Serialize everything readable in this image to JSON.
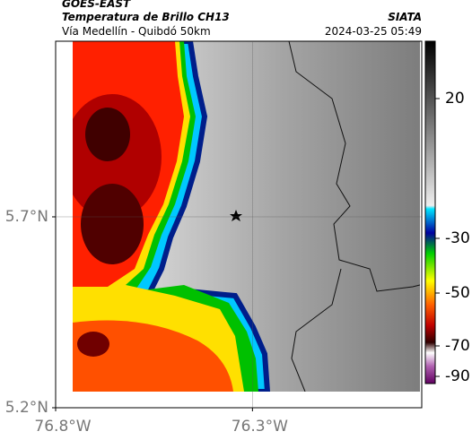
{
  "header": {
    "source": "GOES-EAST",
    "title": "Temperatura de Brillo CH13",
    "subtitle": "Vía Medellín - Quibdó 50km",
    "org": "SIATA",
    "datetime": "2024-03-25 05:49"
  },
  "map": {
    "xlim": [
      -76.8,
      -75.87
    ],
    "ylim": [
      5.2,
      6.16
    ],
    "lon_ticks": [
      {
        "value": -76.8,
        "label": "76.8°W"
      },
      {
        "value": -76.3,
        "label": "76.3°W"
      }
    ],
    "lat_ticks": [
      {
        "value": 5.7,
        "label": "5.7°N"
      },
      {
        "value": 5.2,
        "label": "5.2°N"
      }
    ],
    "grid": true
  },
  "colorbar": {
    "ticks": [
      20,
      -30,
      -50,
      -70,
      -90
    ]
  }
}
